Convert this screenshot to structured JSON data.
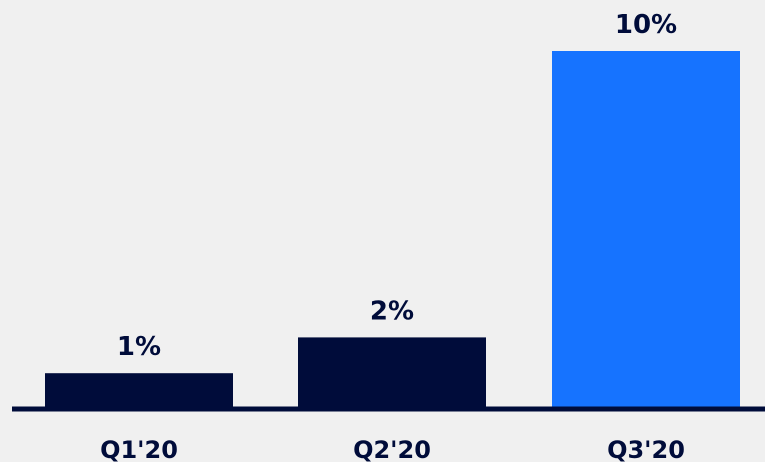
{
  "chart_data": {
    "type": "bar",
    "categories": [
      "Q1'20",
      "Q2'20",
      "Q3'20"
    ],
    "values": [
      1,
      2,
      10
    ],
    "value_labels": [
      "1%",
      "2%",
      "10%"
    ],
    "unit": "%",
    "ylim": [
      0,
      10
    ],
    "grid": false,
    "legend": "none",
    "colors": [
      "#000c3a",
      "#000c3a",
      "#1673ff"
    ],
    "axis_color": "#000c3a",
    "background": "#f0f0f0"
  }
}
